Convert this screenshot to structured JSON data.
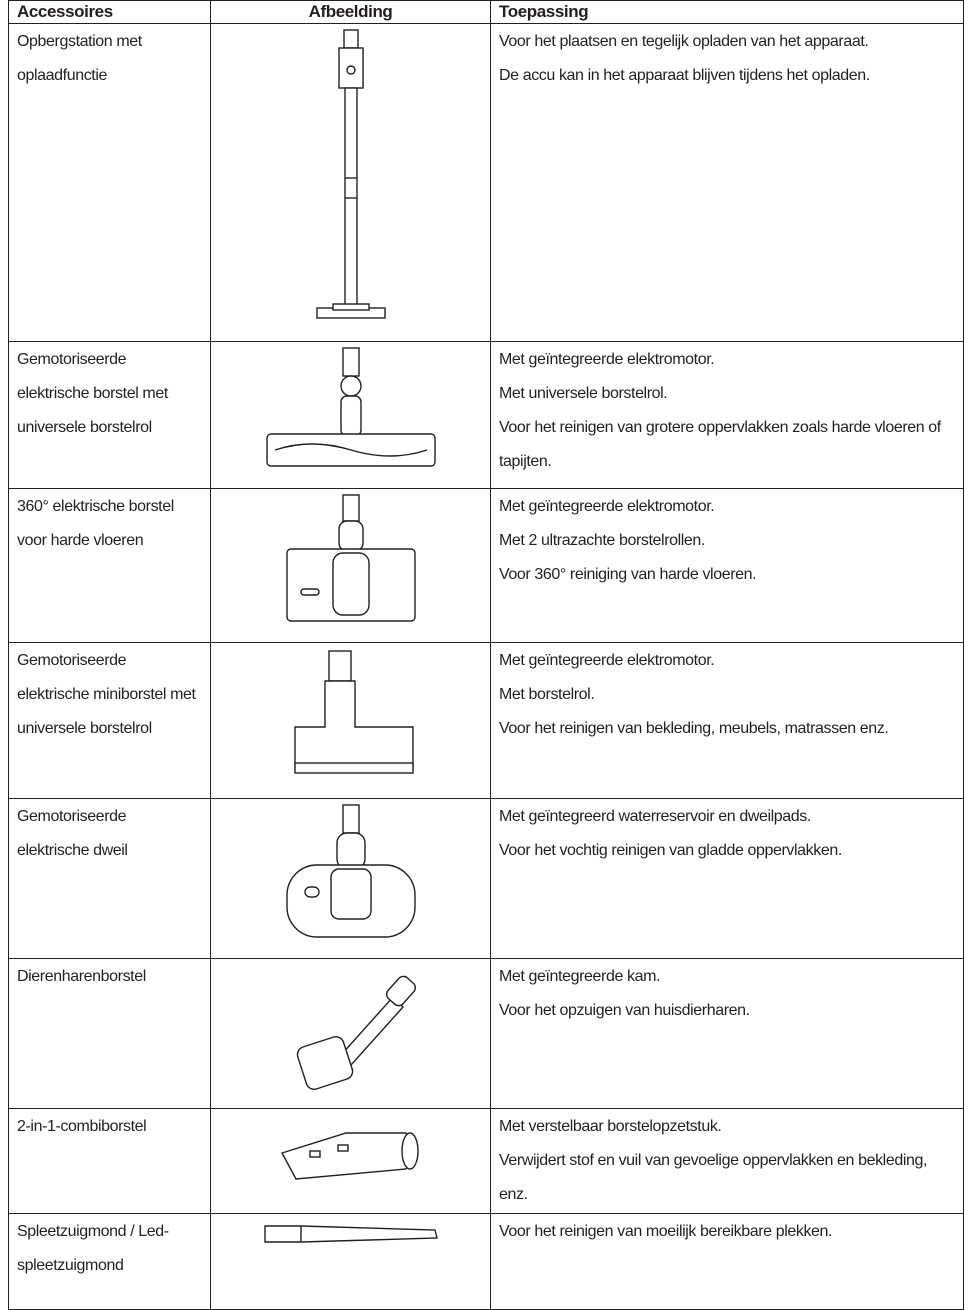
{
  "table": {
    "headers": [
      "Accessoires",
      "Afbeelding",
      "Toepassing"
    ],
    "rows": [
      {
        "accessory": "Opbergstation met oplaadfunctie",
        "application": [
          "Voor het plaatsen en tegelijk opladen van het apparaat.",
          "De accu kan in het apparaat blijven tijdens het opladen."
        ]
      },
      {
        "accessory": "Gemotoriseerde elektrische borstel met universele borstelrol",
        "application": [
          "Met geïntegreerde elektromotor.",
          "Met universele borstelrol.",
          "Voor het reinigen van grotere oppervlakken zoals harde vloeren of tapijten."
        ]
      },
      {
        "accessory": "360° elektrische borstel voor harde vloeren",
        "application": [
          "Met geïntegreerde elektromotor.",
          "Met 2 ultrazachte borstelrollen.",
          "Voor 360° reiniging van harde vloeren."
        ]
      },
      {
        "accessory": "Gemotoriseerde elektrische miniborstel met universele borstelrol",
        "application": [
          "Met geïntegreerde elektromotor.",
          "Met borstelrol.",
          "Voor het reinigen van bekleding, meubels, matrassen enz."
        ]
      },
      {
        "accessory": "Gemotoriseerde elektrische dweil",
        "application": [
          "Met geïntegreerd waterreservoir en dweilpads.",
          "Voor het vochtig reinigen van gladde oppervlakken."
        ]
      },
      {
        "accessory": "Dierenharenborstel",
        "application": [
          "Met geïntegreerde kam.",
          "Voor het opzuigen van huisdierharen."
        ]
      },
      {
        "accessory": "2-in-1-combiborstel",
        "application": [
          "Met verstelbaar borstelopzetstuk.",
          "Verwijdert stof en vuil van gevoelige oppervlakken en bekleding, enz."
        ]
      },
      {
        "accessory": "Spleetzuigmond / Led-spleetzuigmond",
        "application": [
          "Voor het reinigen van moeilijk bereikbare plekken."
        ]
      }
    ]
  }
}
